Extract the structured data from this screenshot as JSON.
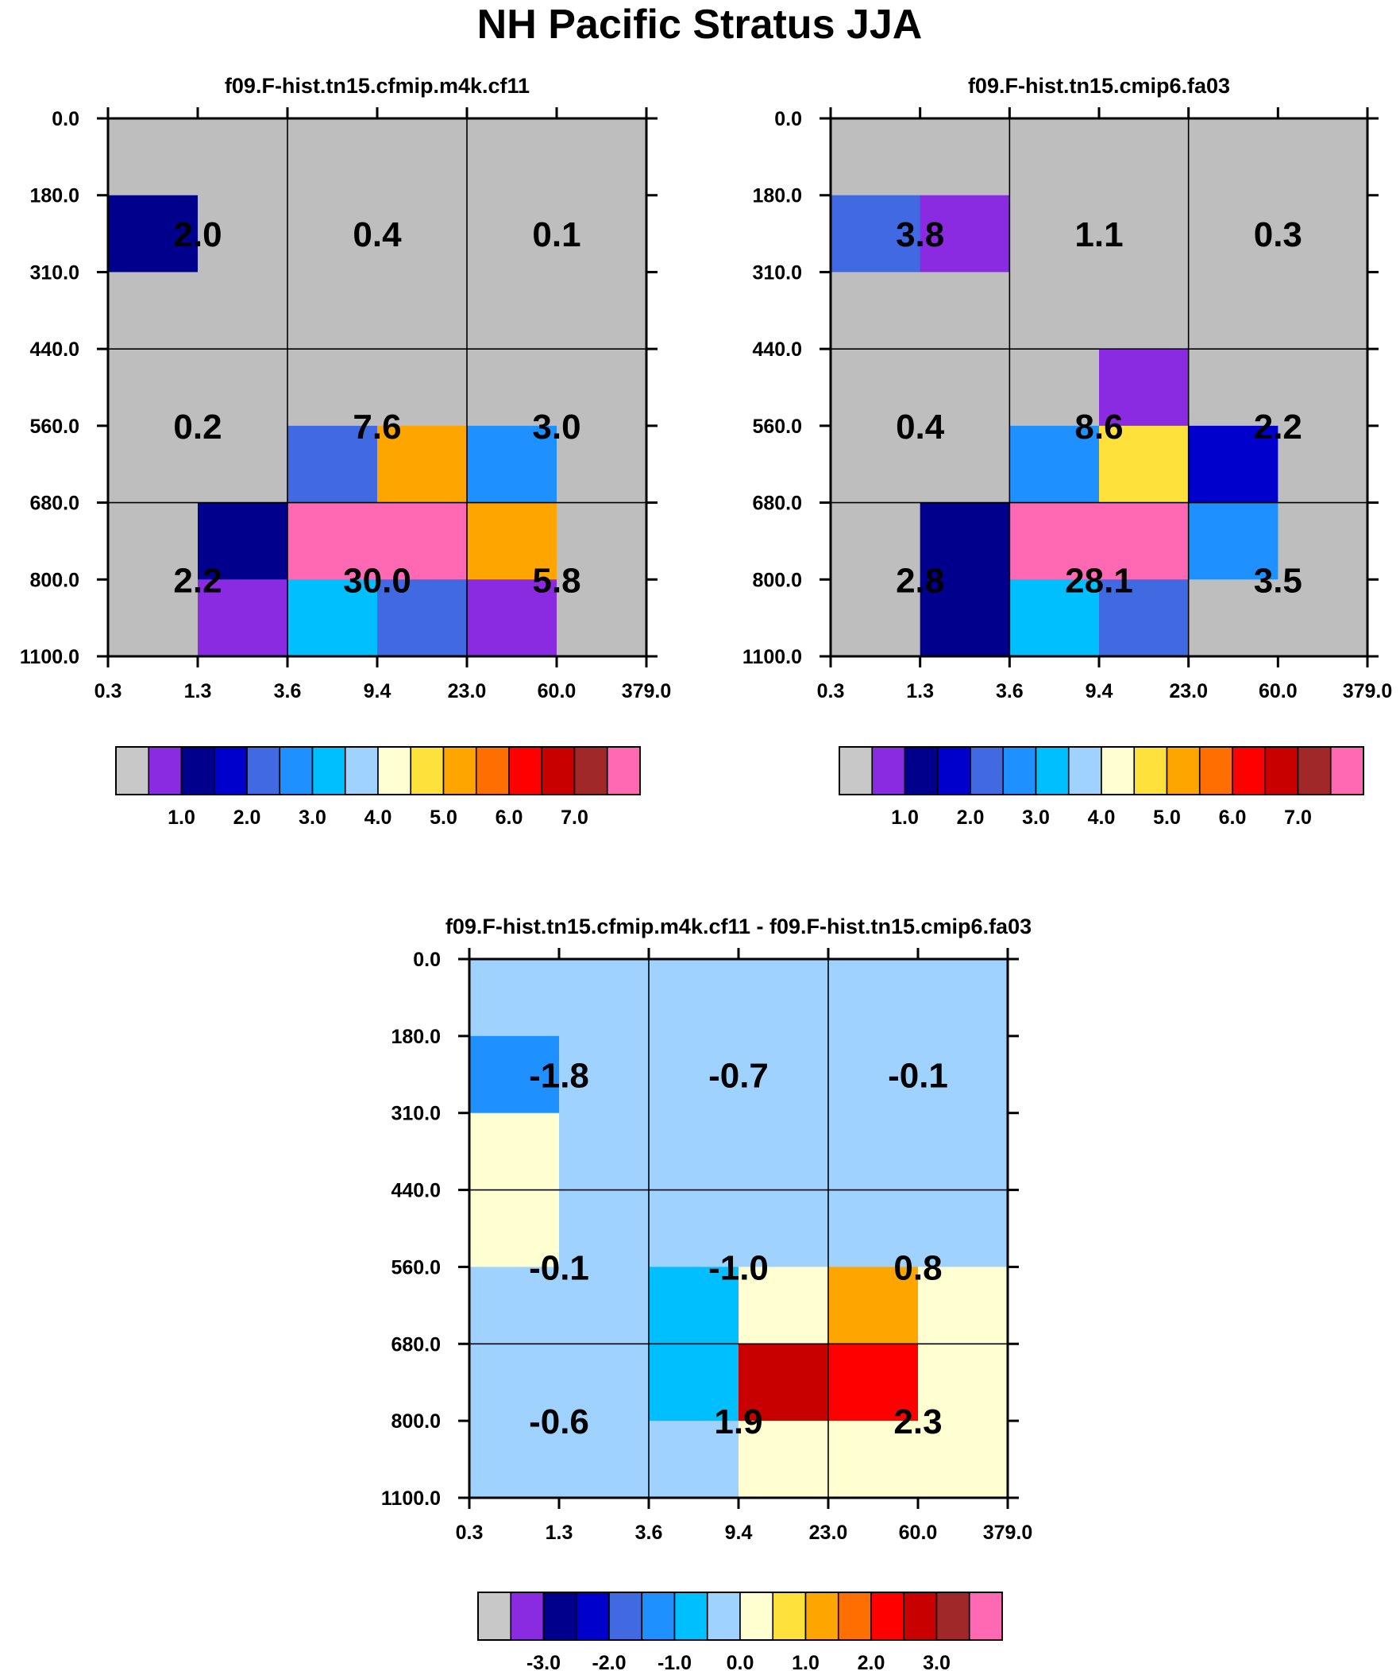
{
  "title": "NH Pacific Stratus JJA",
  "chart_data": [
    {
      "type": "heatmap",
      "title": "f09.F-hist.tn15.cfmip.m4k.cf11",
      "x_ticks": [
        "0.3",
        "1.3",
        "3.6",
        "9.4",
        "23.0",
        "60.0",
        "379.0"
      ],
      "y_ticks": [
        "0.0",
        "180.0",
        "310.0",
        "440.0",
        "560.0",
        "680.0",
        "800.0",
        "1100.0"
      ],
      "cell_colors": [
        [
          "#bebebe",
          "#bebebe",
          "#bebebe",
          "#bebebe",
          "#bebebe",
          "#bebebe"
        ],
        [
          "#00008c",
          "#bebebe",
          "#bebebe",
          "#bebebe",
          "#bebebe",
          "#bebebe"
        ],
        [
          "#bebebe",
          "#bebebe",
          "#bebebe",
          "#bebebe",
          "#bebebe",
          "#bebebe"
        ],
        [
          "#bebebe",
          "#bebebe",
          "#bebebe",
          "#bebebe",
          "#bebebe",
          "#bebebe"
        ],
        [
          "#bebebe",
          "#bebebe",
          "#4169e1",
          "#ffa500",
          "#1e90ff",
          "#bebebe"
        ],
        [
          "#bebebe",
          "#00008c",
          "#ff69b4",
          "#ff69b4",
          "#ffa500",
          "#bebebe"
        ],
        [
          "#bebebe",
          "#8a2be2",
          "#00bfff",
          "#4169e1",
          "#8a2be2",
          "#bebebe"
        ]
      ],
      "totals": [
        [
          "2.0",
          "0.4",
          "0.1"
        ],
        [
          "0.2",
          "7.6",
          "3.0"
        ],
        [
          "2.2",
          "30.0",
          "5.8"
        ]
      ],
      "colorbar": {
        "colors": [
          "#c8c8c8",
          "#8a2be2",
          "#00008c",
          "#0000cd",
          "#4169e1",
          "#1e90ff",
          "#00bfff",
          "#a0d2ff",
          "#ffffd2",
          "#ffe13c",
          "#ffa500",
          "#ff6e00",
          "#ff0000",
          "#c80000",
          "#a02828",
          "#ff69b4"
        ],
        "labels": [
          "1.0",
          "2.0",
          "3.0",
          "4.0",
          "5.0",
          "6.0",
          "7.0"
        ]
      }
    },
    {
      "type": "heatmap",
      "title": "f09.F-hist.tn15.cmip6.fa03",
      "x_ticks": [
        "0.3",
        "1.3",
        "3.6",
        "9.4",
        "23.0",
        "60.0",
        "379.0"
      ],
      "y_ticks": [
        "0.0",
        "180.0",
        "310.0",
        "440.0",
        "560.0",
        "680.0",
        "800.0",
        "1100.0"
      ],
      "cell_colors": [
        [
          "#bebebe",
          "#bebebe",
          "#bebebe",
          "#bebebe",
          "#bebebe",
          "#bebebe"
        ],
        [
          "#4169e1",
          "#8a2be2",
          "#bebebe",
          "#bebebe",
          "#bebebe",
          "#bebebe"
        ],
        [
          "#bebebe",
          "#bebebe",
          "#bebebe",
          "#bebebe",
          "#bebebe",
          "#bebebe"
        ],
        [
          "#bebebe",
          "#bebebe",
          "#bebebe",
          "#8a2be2",
          "#bebebe",
          "#bebebe"
        ],
        [
          "#bebebe",
          "#bebebe",
          "#1e90ff",
          "#ffe13c",
          "#0000cd",
          "#bebebe"
        ],
        [
          "#bebebe",
          "#00008c",
          "#ff69b4",
          "#ff69b4",
          "#1e90ff",
          "#bebebe"
        ],
        [
          "#bebebe",
          "#00008c",
          "#00bfff",
          "#4169e1",
          "#bebebe",
          "#bebebe"
        ]
      ],
      "totals": [
        [
          "3.8",
          "1.1",
          "0.3"
        ],
        [
          "0.4",
          "8.6",
          "2.2"
        ],
        [
          "2.8",
          "28.1",
          "3.5"
        ]
      ],
      "colorbar": {
        "colors": [
          "#c8c8c8",
          "#8a2be2",
          "#00008c",
          "#0000cd",
          "#4169e1",
          "#1e90ff",
          "#00bfff",
          "#a0d2ff",
          "#ffffd2",
          "#ffe13c",
          "#ffa500",
          "#ff6e00",
          "#ff0000",
          "#c80000",
          "#a02828",
          "#ff69b4"
        ],
        "labels": [
          "1.0",
          "2.0",
          "3.0",
          "4.0",
          "5.0",
          "6.0",
          "7.0"
        ]
      }
    },
    {
      "type": "heatmap",
      "title": "f09.F-hist.tn15.cfmip.m4k.cf11 - f09.F-hist.tn15.cmip6.fa03",
      "x_ticks": [
        "0.3",
        "1.3",
        "3.6",
        "9.4",
        "23.0",
        "60.0",
        "379.0"
      ],
      "y_ticks": [
        "0.0",
        "180.0",
        "310.0",
        "440.0",
        "560.0",
        "680.0",
        "800.0",
        "1100.0"
      ],
      "cell_colors": [
        [
          "#a0d2ff",
          "#a0d2ff",
          "#a0d2ff",
          "#a0d2ff",
          "#a0d2ff",
          "#a0d2ff"
        ],
        [
          "#1e90ff",
          "#a0d2ff",
          "#a0d2ff",
          "#a0d2ff",
          "#a0d2ff",
          "#a0d2ff"
        ],
        [
          "#ffffd2",
          "#a0d2ff",
          "#a0d2ff",
          "#a0d2ff",
          "#a0d2ff",
          "#a0d2ff"
        ],
        [
          "#ffffd2",
          "#a0d2ff",
          "#a0d2ff",
          "#a0d2ff",
          "#a0d2ff",
          "#a0d2ff"
        ],
        [
          "#a0d2ff",
          "#a0d2ff",
          "#00bfff",
          "#ffffd2",
          "#ffa500",
          "#ffffd2"
        ],
        [
          "#a0d2ff",
          "#a0d2ff",
          "#00bfff",
          "#c80000",
          "#ff0000",
          "#ffffd2"
        ],
        [
          "#a0d2ff",
          "#a0d2ff",
          "#a0d2ff",
          "#ffffd2",
          "#ffffd2",
          "#ffffd2"
        ]
      ],
      "totals": [
        [
          "-1.8",
          "-0.7",
          "-0.1"
        ],
        [
          "-0.1",
          "-1.0",
          "0.8"
        ],
        [
          "-0.6",
          "1.9",
          "2.3"
        ]
      ],
      "colorbar": {
        "colors": [
          "#c8c8c8",
          "#8a2be2",
          "#00008c",
          "#0000cd",
          "#4169e1",
          "#1e90ff",
          "#00bfff",
          "#a0d2ff",
          "#ffffd2",
          "#ffe13c",
          "#ffa500",
          "#ff6e00",
          "#ff0000",
          "#c80000",
          "#a02828",
          "#ff69b4"
        ],
        "labels": [
          "-3.0",
          "-2.0",
          "-1.0",
          "0.0",
          "1.0",
          "2.0",
          "3.0"
        ]
      }
    }
  ]
}
